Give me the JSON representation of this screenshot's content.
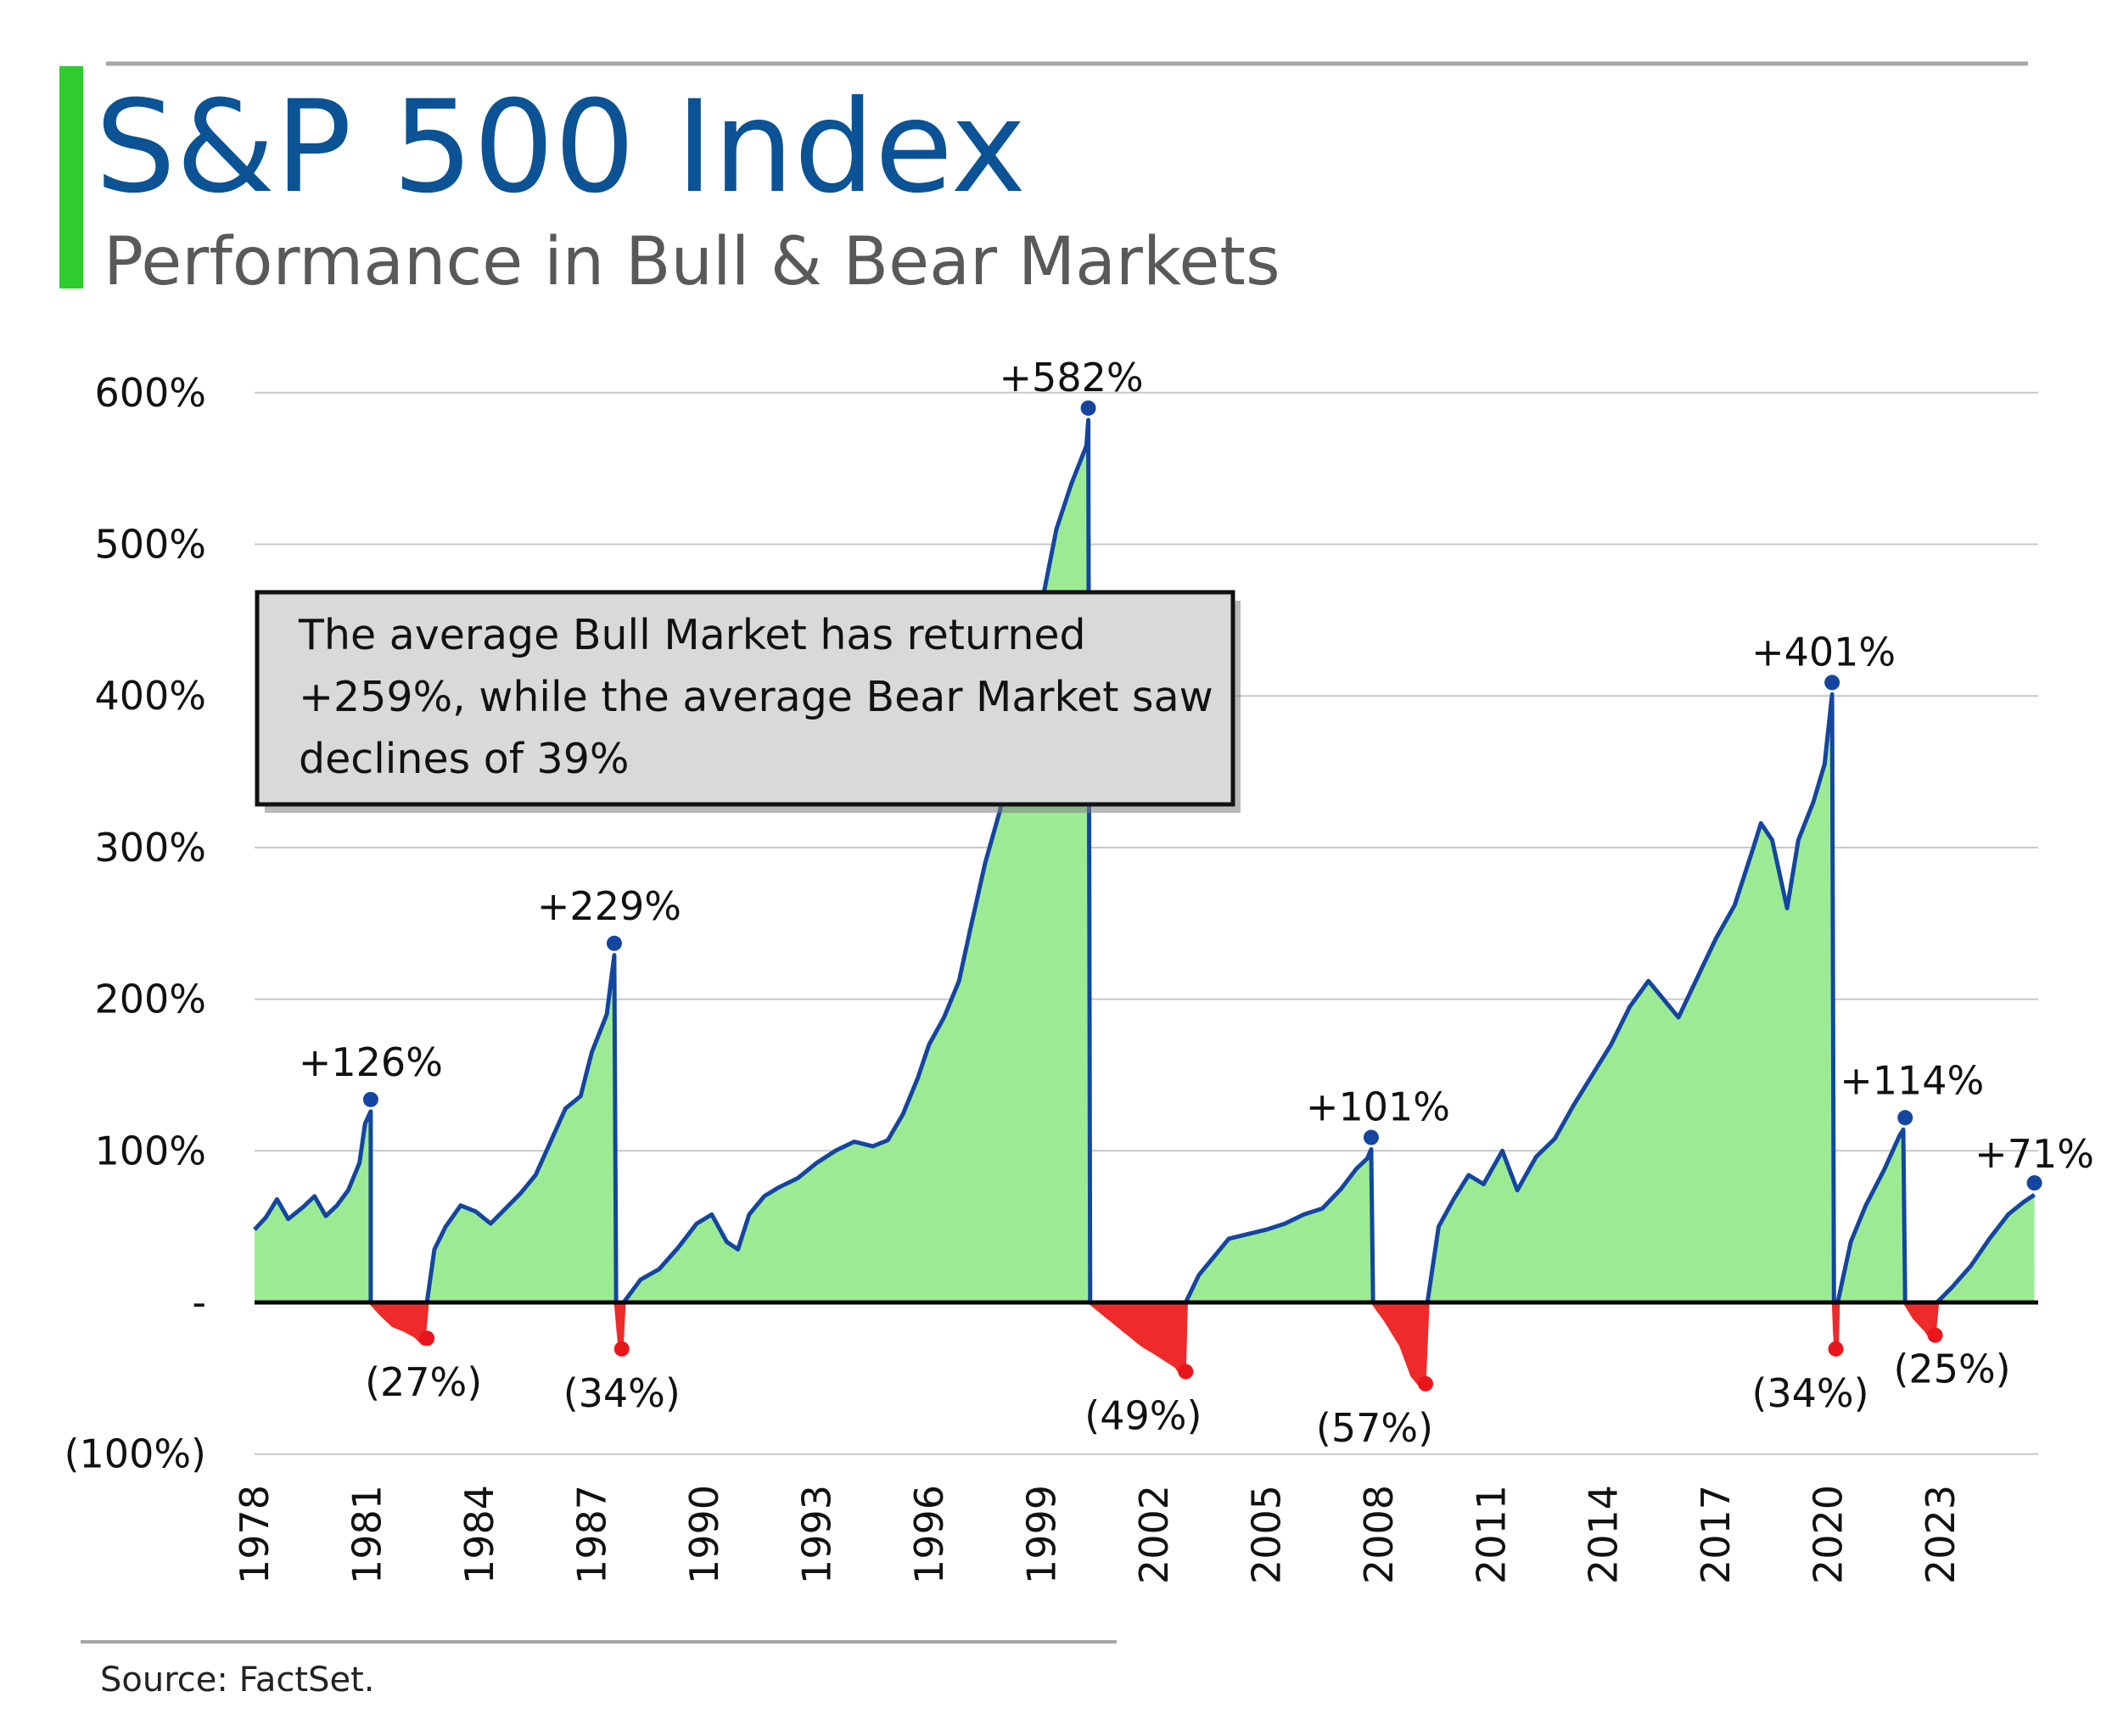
{
  "header": {
    "title": "S&P 500 Index",
    "subtitle": "Performance in Bull & Bear Markets"
  },
  "callout": {
    "lines": [
      "The average Bull Market has returned",
      "+259%, while the average Bear Market saw",
      "declines of 39%"
    ]
  },
  "source": "Source: FactSet.",
  "colors": {
    "title": "#0b5394",
    "accent_bar": "#2ecc2e",
    "bull_fill": "#9ceb94",
    "bear_fill": "#ee2a2a",
    "line": "#1446a0",
    "peak_dot": "#1446a0",
    "trough_dot": "#e8161c"
  },
  "chart_data": {
    "type": "area",
    "title": "S&P 500 Index",
    "subtitle": "Performance in Bull & Bear Markets",
    "ylim": [
      -100,
      600
    ],
    "y_ticks": [
      {
        "value": 600,
        "label": "600%"
      },
      {
        "value": 500,
        "label": "500%"
      },
      {
        "value": 400,
        "label": "400%"
      },
      {
        "value": 300,
        "label": "300%"
      },
      {
        "value": 200,
        "label": "200%"
      },
      {
        "value": 100,
        "label": "100%"
      },
      {
        "value": 0,
        "label": "-"
      },
      {
        "value": -100,
        "label": "(100%)"
      }
    ],
    "xlim": [
      1978.0,
      2025.6
    ],
    "x_ticks": [
      "1978",
      "1981",
      "1984",
      "1987",
      "1990",
      "1993",
      "1996",
      "1999",
      "2002",
      "2005",
      "2008",
      "2011",
      "2014",
      "2017",
      "2020",
      "2023"
    ],
    "grid": true,
    "series": [
      {
        "regime": "bull",
        "points": [
          [
            1978.0,
            48
          ],
          [
            1978.3,
            56
          ],
          [
            1978.6,
            68
          ],
          [
            1978.9,
            55
          ],
          [
            1979.3,
            63
          ],
          [
            1979.6,
            70
          ],
          [
            1979.9,
            57
          ],
          [
            1980.2,
            64
          ],
          [
            1980.5,
            74
          ],
          [
            1980.8,
            92
          ],
          [
            1980.95,
            118
          ],
          [
            1981.1,
            126
          ],
          [
            1981.1,
            0
          ]
        ]
      },
      {
        "regime": "bear",
        "points": [
          [
            1981.1,
            0
          ],
          [
            1981.4,
            -8
          ],
          [
            1981.7,
            -15
          ],
          [
            1982.0,
            -18
          ],
          [
            1982.3,
            -22
          ],
          [
            1982.5,
            -27
          ],
          [
            1982.6,
            0
          ]
        ]
      },
      {
        "regime": "bull",
        "points": [
          [
            1982.6,
            0
          ],
          [
            1982.8,
            35
          ],
          [
            1983.1,
            50
          ],
          [
            1983.5,
            64
          ],
          [
            1983.9,
            60
          ],
          [
            1984.3,
            52
          ],
          [
            1984.7,
            62
          ],
          [
            1985.1,
            72
          ],
          [
            1985.5,
            84
          ],
          [
            1985.9,
            106
          ],
          [
            1986.3,
            128
          ],
          [
            1986.7,
            136
          ],
          [
            1987.0,
            165
          ],
          [
            1987.4,
            190
          ],
          [
            1987.6,
            229
          ],
          [
            1987.65,
            0
          ]
        ]
      },
      {
        "regime": "bear",
        "points": [
          [
            1987.65,
            0
          ],
          [
            1987.72,
            -20
          ],
          [
            1987.78,
            -34
          ],
          [
            1987.85,
            0
          ]
        ]
      },
      {
        "regime": "bull",
        "points": [
          [
            1987.85,
            0
          ],
          [
            1988.3,
            15
          ],
          [
            1988.8,
            22
          ],
          [
            1989.3,
            36
          ],
          [
            1989.8,
            52
          ],
          [
            1990.2,
            58
          ],
          [
            1990.6,
            40
          ],
          [
            1990.9,
            35
          ],
          [
            1991.2,
            58
          ],
          [
            1991.6,
            70
          ],
          [
            1992.0,
            76
          ],
          [
            1992.5,
            82
          ],
          [
            1993.0,
            92
          ],
          [
            1993.5,
            100
          ],
          [
            1994.0,
            106
          ],
          [
            1994.5,
            103
          ],
          [
            1994.9,
            107
          ],
          [
            1995.3,
            124
          ],
          [
            1995.7,
            148
          ],
          [
            1996.0,
            170
          ],
          [
            1996.4,
            188
          ],
          [
            1996.8,
            212
          ],
          [
            1997.1,
            246
          ],
          [
            1997.5,
            290
          ],
          [
            1997.9,
            325
          ],
          [
            1998.3,
            390
          ],
          [
            1998.6,
            440
          ],
          [
            1998.75,
            335
          ],
          [
            1999.0,
            460
          ],
          [
            1999.4,
            510
          ],
          [
            1999.8,
            540
          ],
          [
            2000.2,
            565
          ],
          [
            2000.25,
            582
          ],
          [
            2000.3,
            0
          ]
        ]
      },
      {
        "regime": "bear",
        "points": [
          [
            2000.3,
            0
          ],
          [
            2000.8,
            -10
          ],
          [
            2001.2,
            -18
          ],
          [
            2001.7,
            -28
          ],
          [
            2002.1,
            -34
          ],
          [
            2002.6,
            -42
          ],
          [
            2002.8,
            -49
          ],
          [
            2002.85,
            0
          ]
        ]
      },
      {
        "regime": "bull",
        "points": [
          [
            2002.85,
            0
          ],
          [
            2003.2,
            18
          ],
          [
            2003.6,
            30
          ],
          [
            2004.0,
            42
          ],
          [
            2004.5,
            45
          ],
          [
            2005.0,
            48
          ],
          [
            2005.5,
            52
          ],
          [
            2006.0,
            58
          ],
          [
            2006.5,
            62
          ],
          [
            2007.0,
            75
          ],
          [
            2007.4,
            88
          ],
          [
            2007.7,
            95
          ],
          [
            2007.8,
            101
          ],
          [
            2007.85,
            0
          ]
        ]
      },
      {
        "regime": "bear",
        "points": [
          [
            2007.85,
            0
          ],
          [
            2008.2,
            -12
          ],
          [
            2008.6,
            -28
          ],
          [
            2008.9,
            -48
          ],
          [
            2009.2,
            -57
          ],
          [
            2009.3,
            0
          ]
        ]
      },
      {
        "regime": "bull",
        "points": [
          [
            2009.3,
            0
          ],
          [
            2009.6,
            50
          ],
          [
            2010.0,
            68
          ],
          [
            2010.4,
            84
          ],
          [
            2010.8,
            78
          ],
          [
            2011.3,
            100
          ],
          [
            2011.7,
            74
          ],
          [
            2012.2,
            96
          ],
          [
            2012.7,
            108
          ],
          [
            2013.2,
            130
          ],
          [
            2013.7,
            150
          ],
          [
            2014.2,
            170
          ],
          [
            2014.7,
            195
          ],
          [
            2015.2,
            212
          ],
          [
            2015.6,
            200
          ],
          [
            2016.0,
            188
          ],
          [
            2016.5,
            214
          ],
          [
            2017.0,
            240
          ],
          [
            2017.5,
            262
          ],
          [
            2018.0,
            300
          ],
          [
            2018.2,
            316
          ],
          [
            2018.5,
            305
          ],
          [
            2018.9,
            260
          ],
          [
            2019.2,
            305
          ],
          [
            2019.6,
            330
          ],
          [
            2019.9,
            355
          ],
          [
            2020.1,
            401
          ],
          [
            2020.15,
            0
          ]
        ]
      },
      {
        "regime": "bear",
        "points": [
          [
            2020.15,
            0
          ],
          [
            2020.18,
            -20
          ],
          [
            2020.22,
            -34
          ],
          [
            2020.25,
            0
          ]
        ]
      },
      {
        "regime": "bull",
        "points": [
          [
            2020.25,
            0
          ],
          [
            2020.6,
            40
          ],
          [
            2021.0,
            64
          ],
          [
            2021.5,
            88
          ],
          [
            2021.9,
            110
          ],
          [
            2022.0,
            114
          ],
          [
            2022.05,
            0
          ]
        ]
      },
      {
        "regime": "bear",
        "points": [
          [
            2022.05,
            0
          ],
          [
            2022.3,
            -10
          ],
          [
            2022.6,
            -18
          ],
          [
            2022.8,
            -25
          ],
          [
            2022.9,
            0
          ]
        ]
      },
      {
        "regime": "bull",
        "points": [
          [
            2022.9,
            0
          ],
          [
            2023.3,
            10
          ],
          [
            2023.8,
            24
          ],
          [
            2024.3,
            42
          ],
          [
            2024.8,
            58
          ],
          [
            2025.2,
            66
          ],
          [
            2025.5,
            71
          ]
        ]
      }
    ],
    "annotations": [
      {
        "x": 1981.1,
        "y": 126,
        "label": "+126%",
        "kind": "peak"
      },
      {
        "x": 1982.6,
        "y": -27,
        "label": "(27%)",
        "kind": "trough"
      },
      {
        "x": 1987.6,
        "y": 229,
        "label": "+229%",
        "kind": "peak"
      },
      {
        "x": 1987.8,
        "y": -34,
        "label": "(34%)",
        "kind": "trough"
      },
      {
        "x": 2000.25,
        "y": 582,
        "label": "+582%",
        "kind": "peak"
      },
      {
        "x": 2002.85,
        "y": -49,
        "label": "(49%)",
        "kind": "trough"
      },
      {
        "x": 2007.8,
        "y": 101,
        "label": "+101%",
        "kind": "peak"
      },
      {
        "x": 2009.25,
        "y": -57,
        "label": "(57%)",
        "kind": "trough"
      },
      {
        "x": 2020.1,
        "y": 401,
        "label": "+401%",
        "kind": "peak"
      },
      {
        "x": 2020.2,
        "y": -34,
        "label": "(34%)",
        "kind": "trough"
      },
      {
        "x": 2022.05,
        "y": 114,
        "label": "+114%",
        "kind": "peak"
      },
      {
        "x": 2022.85,
        "y": -25,
        "label": "(25%)",
        "kind": "trough"
      },
      {
        "x": 2025.5,
        "y": 71,
        "label": "+71%",
        "kind": "peak"
      }
    ]
  }
}
